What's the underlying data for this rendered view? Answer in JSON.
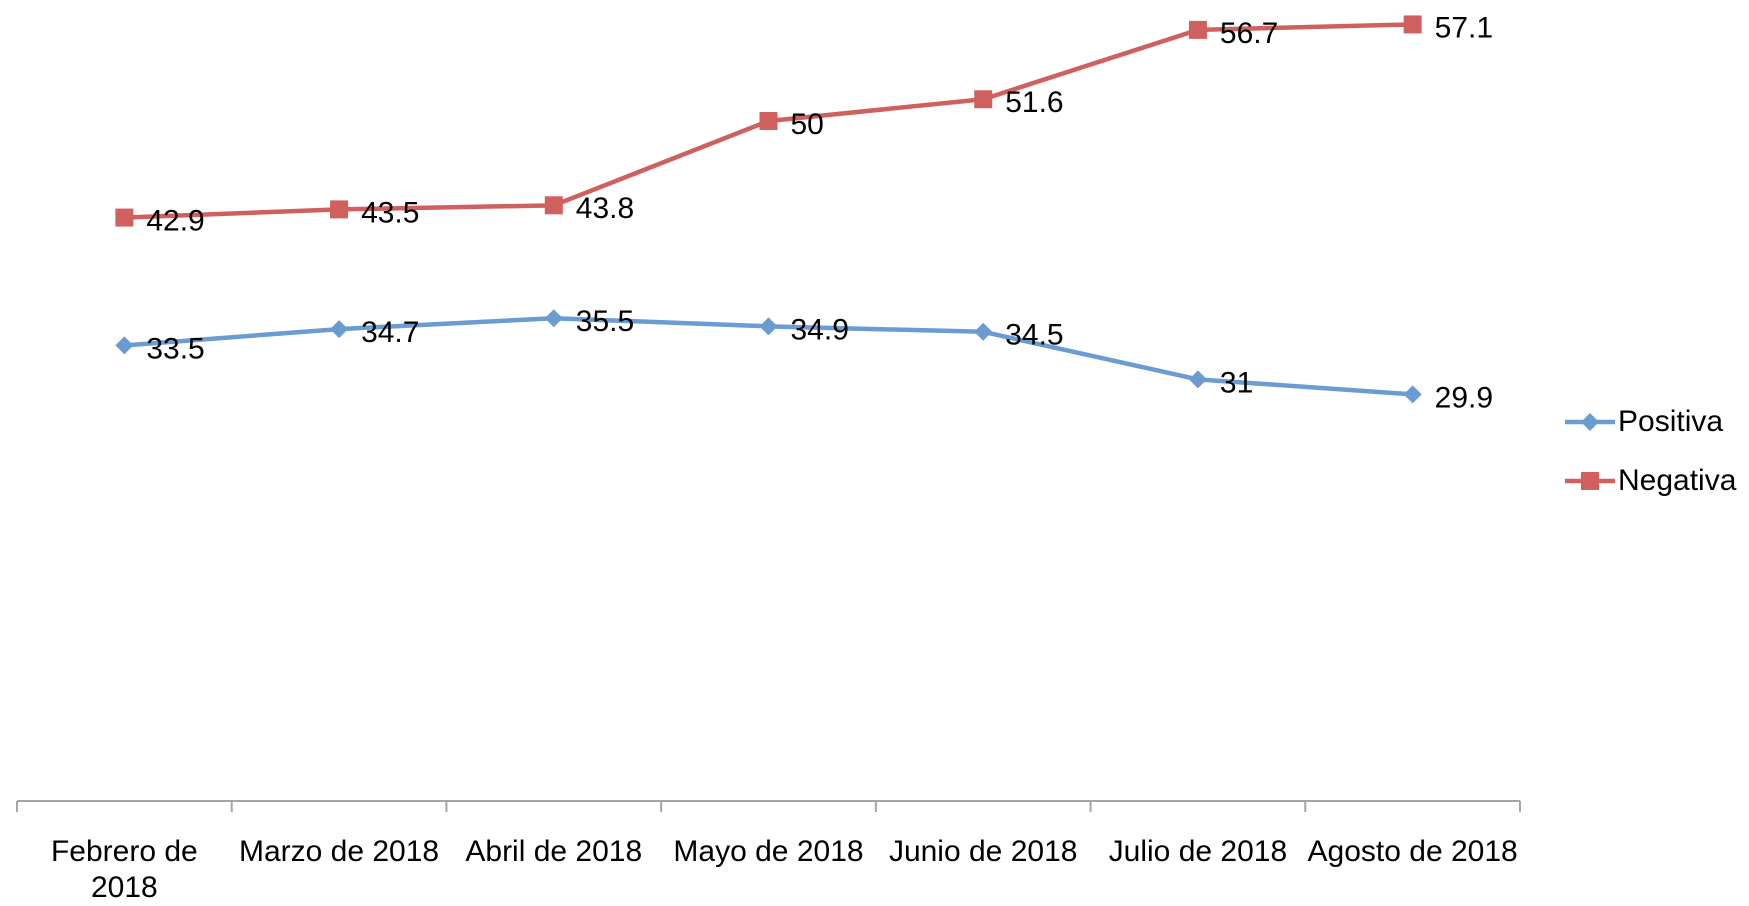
{
  "chart_data": {
    "type": "line",
    "categories": [
      "Febrero de 2018",
      "Marzo de 2018",
      "Abril de 2018",
      "Mayo de 2018",
      "Junio de 2018",
      "Julio de 2018",
      "Agosto de 2018"
    ],
    "series": [
      {
        "name": "Positiva",
        "color": "#6a9bd1",
        "marker": "diamond",
        "values": [
          33.5,
          34.7,
          35.5,
          34.9,
          34.5,
          31,
          29.9
        ]
      },
      {
        "name": "Negativa",
        "color": "#d0605e",
        "marker": "square",
        "values": [
          42.9,
          43.5,
          43.8,
          50,
          51.6,
          56.7,
          57.1
        ]
      }
    ],
    "ylim": [
      0,
      60
    ],
    "legend": "right"
  }
}
